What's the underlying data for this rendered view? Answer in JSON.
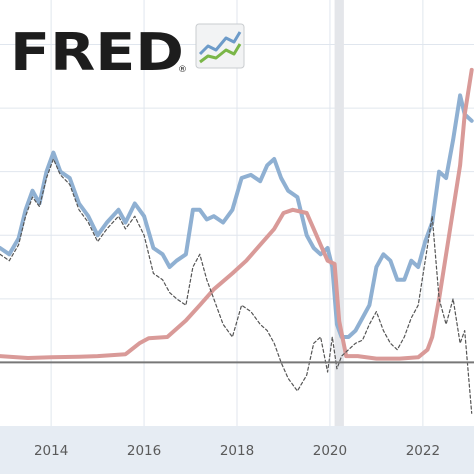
{
  "logo": {
    "text": "FRED",
    "registered": "®"
  },
  "colors": {
    "series_blue": "#8fb0d2",
    "series_red": "#d99a98",
    "series_dashed": "#555555",
    "recession_shade": "#e4e6ea",
    "zero_line": "#777777",
    "grid": "#e0e6ee",
    "axis_band": "#e6ecf3"
  },
  "chart_data": {
    "type": "line",
    "title": "",
    "xlabel": "",
    "ylabel": "",
    "xlim": [
      2012.9,
      2023.1
    ],
    "ylim": [
      -1.0,
      5.7
    ],
    "x_ticks": [
      "2014",
      "2016",
      "2018",
      "2020",
      "2022"
    ],
    "x_tick_values": [
      2014,
      2016,
      2018,
      2020,
      2022
    ],
    "y_gridlines": [
      0,
      1,
      2,
      3,
      4,
      5
    ],
    "grid": true,
    "zero_line": 0,
    "recession_band": [
      2020.1,
      2020.3
    ],
    "series": [
      {
        "style": "blue-solid",
        "x": [
          2012.9,
          2013.1,
          2013.3,
          2013.45,
          2013.6,
          2013.75,
          2013.9,
          2014.05,
          2014.2,
          2014.4,
          2014.6,
          2014.8,
          2015.0,
          2015.2,
          2015.45,
          2015.6,
          2015.8,
          2016.0,
          2016.2,
          2016.4,
          2016.55,
          2016.7,
          2016.9,
          2017.05,
          2017.2,
          2017.35,
          2017.5,
          2017.7,
          2017.9,
          2018.1,
          2018.3,
          2018.5,
          2018.65,
          2018.8,
          2018.95,
          2019.1,
          2019.3,
          2019.5,
          2019.65,
          2019.8,
          2019.95,
          2020.05,
          2020.15,
          2020.25,
          2020.4,
          2020.55,
          2020.7,
          2020.85,
          2021.0,
          2021.15,
          2021.3,
          2021.45,
          2021.6,
          2021.75,
          2021.9,
          2022.05,
          2022.2,
          2022.35,
          2022.5,
          2022.65,
          2022.8,
          2022.9,
          2023.05
        ],
        "y": [
          1.8,
          1.7,
          1.95,
          2.4,
          2.7,
          2.5,
          3.0,
          3.3,
          3.0,
          2.9,
          2.5,
          2.3,
          2.0,
          2.2,
          2.4,
          2.2,
          2.5,
          2.3,
          1.8,
          1.7,
          1.5,
          1.6,
          1.7,
          2.4,
          2.4,
          2.25,
          2.3,
          2.2,
          2.4,
          2.9,
          2.95,
          2.85,
          3.1,
          3.2,
          2.9,
          2.7,
          2.6,
          2.0,
          1.8,
          1.7,
          1.8,
          1.5,
          0.6,
          0.4,
          0.4,
          0.5,
          0.7,
          0.9,
          1.5,
          1.7,
          1.6,
          1.3,
          1.3,
          1.6,
          1.5,
          1.9,
          2.2,
          3.0,
          2.9,
          3.5,
          4.2,
          3.9,
          3.8
        ]
      },
      {
        "style": "red-solid",
        "x": [
          2012.9,
          2013.5,
          2014.0,
          2014.6,
          2015.0,
          2015.6,
          2015.9,
          2016.1,
          2016.5,
          2016.9,
          2017.2,
          2017.5,
          2017.9,
          2018.2,
          2018.5,
          2018.8,
          2019.0,
          2019.2,
          2019.5,
          2019.65,
          2019.8,
          2019.95,
          2020.1,
          2020.2,
          2020.35,
          2020.6,
          2021.0,
          2021.5,
          2021.9,
          2022.1,
          2022.2,
          2022.35,
          2022.5,
          2022.65,
          2022.8,
          2022.9,
          2023.05
        ],
        "y": [
          0.1,
          0.07,
          0.08,
          0.09,
          0.1,
          0.13,
          0.3,
          0.38,
          0.4,
          0.66,
          0.9,
          1.15,
          1.4,
          1.6,
          1.85,
          2.1,
          2.35,
          2.4,
          2.35,
          2.1,
          1.85,
          1.6,
          1.55,
          0.65,
          0.1,
          0.1,
          0.06,
          0.06,
          0.08,
          0.2,
          0.4,
          1.0,
          1.7,
          2.4,
          3.1,
          3.9,
          4.6
        ]
      },
      {
        "style": "gray-dashed",
        "x": [
          2012.9,
          2013.1,
          2013.3,
          2013.45,
          2013.6,
          2013.75,
          2013.9,
          2014.05,
          2014.2,
          2014.4,
          2014.6,
          2014.8,
          2015.0,
          2015.2,
          2015.45,
          2015.6,
          2015.8,
          2016.0,
          2016.2,
          2016.4,
          2016.55,
          2016.7,
          2016.9,
          2017.05,
          2017.2,
          2017.35,
          2017.5,
          2017.7,
          2017.9,
          2018.1,
          2018.3,
          2018.5,
          2018.65,
          2018.8,
          2018.95,
          2019.1,
          2019.3,
          2019.5,
          2019.65,
          2019.8,
          2019.95,
          2020.05,
          2020.15,
          2020.25,
          2020.4,
          2020.55,
          2020.7,
          2020.85,
          2021.0,
          2021.15,
          2021.3,
          2021.45,
          2021.6,
          2021.75,
          2021.9,
          2022.05,
          2022.2,
          2022.35,
          2022.5,
          2022.65,
          2022.8,
          2022.9,
          2023.05
        ],
        "y": [
          1.7,
          1.6,
          1.85,
          2.3,
          2.6,
          2.45,
          2.9,
          3.2,
          2.95,
          2.8,
          2.4,
          2.2,
          1.9,
          2.1,
          2.3,
          2.1,
          2.3,
          2.0,
          1.4,
          1.3,
          1.1,
          1.0,
          0.9,
          1.5,
          1.7,
          1.3,
          1.0,
          0.6,
          0.4,
          0.9,
          0.8,
          0.6,
          0.5,
          0.3,
          0.0,
          -0.25,
          -0.45,
          -0.2,
          0.3,
          0.4,
          -0.15,
          0.4,
          -0.1,
          0.1,
          0.2,
          0.3,
          0.35,
          0.6,
          0.8,
          0.5,
          0.3,
          0.2,
          0.4,
          0.7,
          0.9,
          1.6,
          2.3,
          1.0,
          0.6,
          1.0,
          0.3,
          0.5,
          -0.8
        ]
      }
    ]
  }
}
